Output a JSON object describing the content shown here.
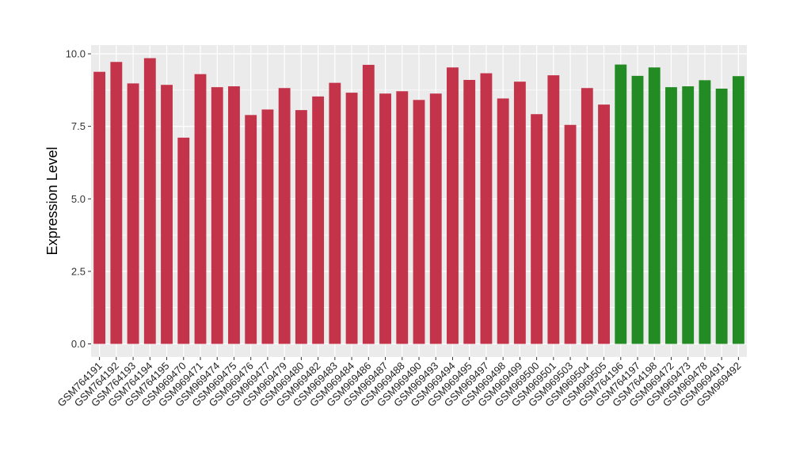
{
  "chart_data": {
    "type": "bar",
    "title": "",
    "xlabel": "",
    "ylabel": "Expression Level",
    "ylim": [
      -0.45,
      10.3
    ],
    "yticks": [
      "0.0",
      "2.5",
      "5.0",
      "7.5",
      "10.0"
    ],
    "ytick_values": [
      0,
      2.5,
      5.0,
      7.5,
      10.0
    ],
    "grid": true,
    "legend": "none",
    "colors": {
      "group1": "#c3344a",
      "group2": "#238b23",
      "panel": "#ebebeb",
      "grid": "#ffffff"
    },
    "categories": [
      "GSM764191",
      "GSM764192",
      "GSM764193",
      "GSM764194",
      "GSM764195",
      "GSM969470",
      "GSM969471",
      "GSM969474",
      "GSM969475",
      "GSM969476",
      "GSM969477",
      "GSM969479",
      "GSM969480",
      "GSM969482",
      "GSM969483",
      "GSM969484",
      "GSM969486",
      "GSM969487",
      "GSM969488",
      "GSM969490",
      "GSM969493",
      "GSM969494",
      "GSM969495",
      "GSM969497",
      "GSM969498",
      "GSM969499",
      "GSM969500",
      "GSM969501",
      "GSM969503",
      "GSM969504",
      "GSM969505",
      "GSM764196",
      "GSM764197",
      "GSM764198",
      "GSM969472",
      "GSM969473",
      "GSM969478",
      "GSM969491",
      "GSM969492"
    ],
    "values": [
      9.38,
      9.72,
      8.98,
      9.85,
      8.93,
      7.11,
      9.3,
      8.85,
      8.88,
      7.89,
      8.08,
      8.82,
      8.06,
      8.53,
      9.0,
      8.66,
      9.62,
      8.63,
      8.71,
      8.41,
      8.63,
      9.53,
      9.1,
      9.33,
      8.46,
      9.04,
      7.92,
      9.26,
      7.55,
      8.82,
      8.25,
      9.63,
      9.24,
      9.53,
      8.85,
      8.88,
      9.09,
      8.8,
      9.23
    ],
    "groups": [
      "group1",
      "group1",
      "group1",
      "group1",
      "group1",
      "group1",
      "group1",
      "group1",
      "group1",
      "group1",
      "group1",
      "group1",
      "group1",
      "group1",
      "group1",
      "group1",
      "group1",
      "group1",
      "group1",
      "group1",
      "group1",
      "group1",
      "group1",
      "group1",
      "group1",
      "group1",
      "group1",
      "group1",
      "group1",
      "group1",
      "group1",
      "group2",
      "group2",
      "group2",
      "group2",
      "group2",
      "group2",
      "group2",
      "group2"
    ]
  }
}
